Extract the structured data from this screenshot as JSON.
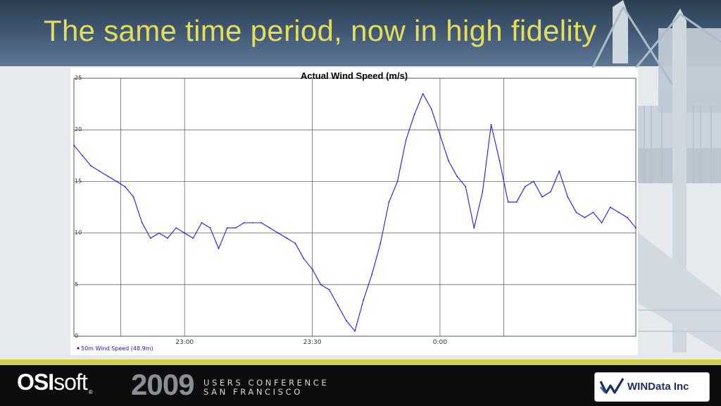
{
  "slide": {
    "title": "The same time period, now in high fidelity"
  },
  "footer": {
    "logo_main": "OSI",
    "logo_soft": "soft",
    "logo_mark": "®",
    "conference_year": "2009",
    "conference_line1": "USERS CONFERENCE",
    "conference_line2": "SAN FRANCISCO",
    "partner_logo": "WINData Inc"
  },
  "colors": {
    "title": "#e4dd5a",
    "series": "#1a1aee",
    "footer_rule": "#d4cf4a"
  },
  "chart_data": {
    "type": "line",
    "title": "Actual Wind Speed (m/s)",
    "xlabel": "",
    "ylabel": "",
    "ylim": [
      0,
      25
    ],
    "yticks": [
      0,
      5,
      10,
      15,
      20,
      25
    ],
    "xlim": [
      "22:34",
      "00:46"
    ],
    "xticks": [
      "23:00",
      "23:30",
      "0:00"
    ],
    "grid": true,
    "legend_position": "bottom-left",
    "series": [
      {
        "name": "50m Wind Speed (48.9m)",
        "color": "#1a1aee",
        "x": [
          "22:34",
          "22:36",
          "22:38",
          "22:40",
          "22:42",
          "22:44",
          "22:46",
          "22:48",
          "22:50",
          "22:52",
          "22:54",
          "22:56",
          "22:58",
          "23:00",
          "23:02",
          "23:04",
          "23:06",
          "23:08",
          "23:10",
          "23:12",
          "23:14",
          "23:16",
          "23:18",
          "23:20",
          "23:22",
          "23:24",
          "23:26",
          "23:28",
          "23:30",
          "23:32",
          "23:34",
          "23:36",
          "23:38",
          "23:40",
          "23:42",
          "23:44",
          "23:46",
          "23:48",
          "23:50",
          "23:52",
          "23:54",
          "23:56",
          "23:58",
          "0:00",
          "0:02",
          "0:04",
          "0:06",
          "0:08",
          "0:10",
          "0:12",
          "0:14",
          "0:16",
          "0:18",
          "0:20",
          "0:22",
          "0:24",
          "0:26",
          "0:28",
          "0:30",
          "0:32",
          "0:34",
          "0:36",
          "0:38",
          "0:40",
          "0:42",
          "0:44",
          "0:46"
        ],
        "values": [
          18.5,
          17.5,
          16.5,
          16,
          15.5,
          15,
          14.5,
          13.5,
          11,
          9.5,
          10,
          9.5,
          10.5,
          10,
          9.5,
          11,
          10.5,
          8.5,
          10.5,
          10.5,
          11,
          11,
          11,
          10.5,
          10,
          9.5,
          9,
          7.5,
          6.5,
          5,
          4.5,
          3,
          1.5,
          0.5,
          3.5,
          6,
          9,
          13,
          15,
          19,
          21.5,
          23.5,
          22,
          19.5,
          17,
          15.5,
          14.5,
          10.5,
          14,
          20.5,
          17,
          13,
          13,
          14.5,
          15,
          13.5,
          14,
          16,
          13.5,
          12,
          11.5,
          12,
          11,
          12.5,
          12,
          11.5,
          10.5
        ]
      }
    ]
  }
}
